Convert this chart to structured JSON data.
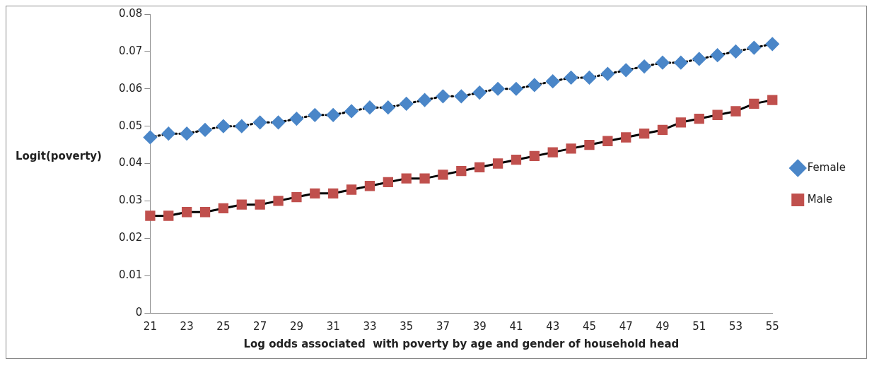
{
  "chart_data": {
    "type": "line",
    "xlabel": "Log odds associated  with poverty by age and gender of household head",
    "ylabel": "Logit(poverty)",
    "categories": [
      "21",
      null,
      "23",
      null,
      "25",
      null,
      "27",
      null,
      "29",
      null,
      "31",
      null,
      "33",
      null,
      "35",
      null,
      "37",
      null,
      "39",
      null,
      "41",
      null,
      "43",
      null,
      "45",
      null,
      "47",
      null,
      "49",
      null,
      "51",
      null,
      "53",
      null,
      "55"
    ],
    "series": [
      {
        "name": "Female",
        "color": "#4a86c8",
        "marker": "diamond",
        "line_style": "dotted",
        "values": [
          0.047,
          0.048,
          0.048,
          0.049,
          0.05,
          0.05,
          0.051,
          0.051,
          0.052,
          0.053,
          0.053,
          0.054,
          0.055,
          0.055,
          0.056,
          0.057,
          0.058,
          0.058,
          0.059,
          0.06,
          0.06,
          0.061,
          0.062,
          0.063,
          0.063,
          0.064,
          0.065,
          0.066,
          0.067,
          0.067,
          0.068,
          0.069,
          0.07,
          0.071,
          0.072
        ]
      },
      {
        "name": "Male",
        "color": "#c0504d",
        "marker": "square",
        "line_style": "solid",
        "values": [
          0.026,
          0.026,
          0.027,
          0.027,
          0.028,
          0.029,
          0.029,
          0.03,
          0.031,
          0.032,
          0.032,
          0.033,
          0.034,
          0.035,
          0.036,
          0.036,
          0.037,
          0.038,
          0.039,
          0.04,
          0.041,
          0.042,
          0.043,
          0.044,
          0.045,
          0.046,
          0.047,
          0.048,
          0.049,
          0.051,
          0.052,
          0.053,
          0.054,
          0.056,
          0.057
        ]
      }
    ],
    "ylim": [
      0,
      0.08
    ],
    "yticks": [
      0,
      0.01,
      0.02,
      0.03,
      0.04,
      0.05,
      0.06,
      0.07,
      0.08
    ],
    "grid": false,
    "legend": "right"
  }
}
